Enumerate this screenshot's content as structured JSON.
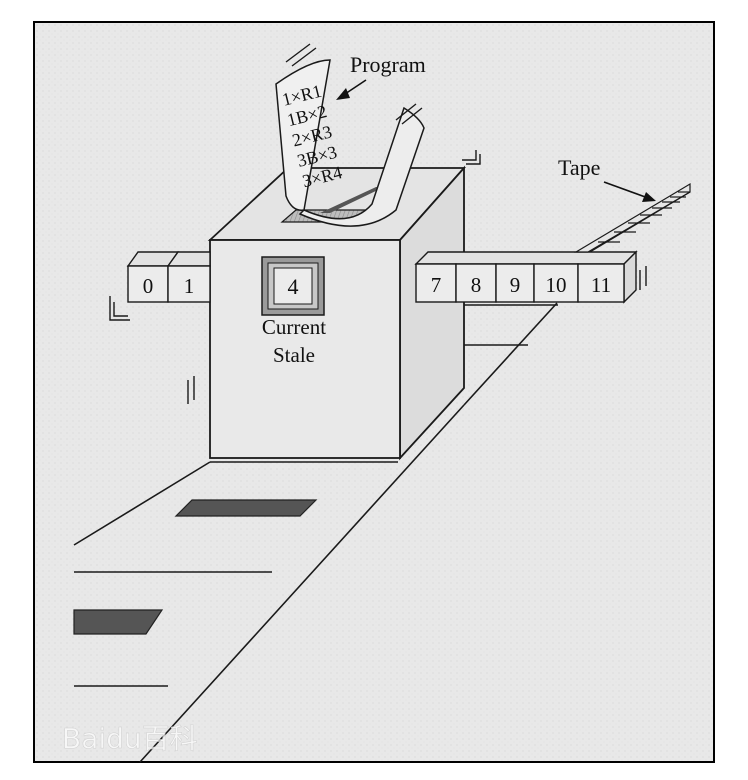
{
  "labels": {
    "program": "Program",
    "tape": "Tape",
    "current_state_line1": "Current",
    "current_state_line2": "Stale",
    "current_state_value": "4",
    "watermark": "Baidu百科"
  },
  "program_lines": [
    "1×R1",
    "1B×2",
    "2×R3",
    "3B×3",
    "3×R4"
  ],
  "tape_left_cells": [
    "0",
    "1"
  ],
  "tape_right_cells": [
    "7",
    "8",
    "9",
    "10",
    "11"
  ],
  "colors": {
    "paper": "#e9e9e9",
    "ink": "#1a1a1a",
    "slot": "#555555",
    "border": "#000000"
  }
}
